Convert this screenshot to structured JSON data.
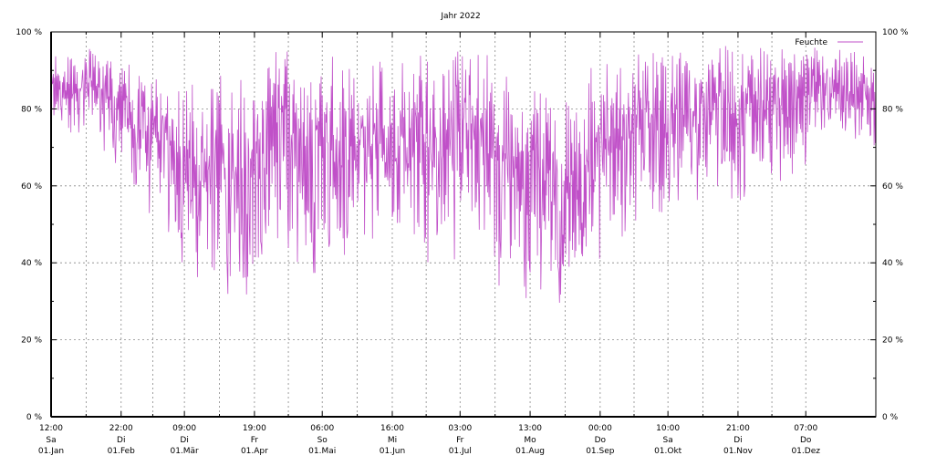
{
  "chart_data": {
    "type": "line",
    "title": "Jahr 2022",
    "xlabel": "",
    "ylabel": "",
    "ylim": [
      0,
      100
    ],
    "xlim_days": [
      0,
      365
    ],
    "grid": true,
    "legend_position": "top-right",
    "y_ticks": [
      {
        "value": 0,
        "label": "0 %"
      },
      {
        "value": 20,
        "label": "20 %"
      },
      {
        "value": 40,
        "label": "40 %"
      },
      {
        "value": 60,
        "label": "60 %"
      },
      {
        "value": 80,
        "label": "80 %"
      },
      {
        "value": 100,
        "label": "100 %"
      }
    ],
    "x_ticks": [
      {
        "day": 0,
        "time": "12:00",
        "weekday": "Sa",
        "date": "01.Jan"
      },
      {
        "day": 31,
        "time": "22:00",
        "weekday": "Di",
        "date": "01.Feb"
      },
      {
        "day": 59,
        "time": "09:00",
        "weekday": "Di",
        "date": "01.Mär"
      },
      {
        "day": 90,
        "time": "19:00",
        "weekday": "Fr",
        "date": "01.Apr"
      },
      {
        "day": 120,
        "time": "06:00",
        "weekday": "So",
        "date": "01.Mai"
      },
      {
        "day": 151,
        "time": "16:00",
        "weekday": "Mi",
        "date": "01.Jun"
      },
      {
        "day": 181,
        "time": "03:00",
        "weekday": "Fr",
        "date": "01.Jul"
      },
      {
        "day": 212,
        "time": "13:00",
        "weekday": "Mo",
        "date": "01.Aug"
      },
      {
        "day": 243,
        "time": "00:00",
        "weekday": "Do",
        "date": "01.Sep"
      },
      {
        "day": 273,
        "time": "10:00",
        "weekday": "Sa",
        "date": "01.Okt"
      },
      {
        "day": 304,
        "time": "21:00",
        "weekday": "Di",
        "date": "01.Nov"
      },
      {
        "day": 334,
        "time": "07:00",
        "weekday": "Do",
        "date": "01.Dez"
      }
    ],
    "series": [
      {
        "name": "Feuchte",
        "color": "#c050c8",
        "unit": "%",
        "weekly_range": [
          [
            72,
            95
          ],
          [
            70,
            95
          ],
          [
            75,
            96
          ],
          [
            68,
            95
          ],
          [
            65,
            92
          ],
          [
            55,
            90
          ],
          [
            50,
            88
          ],
          [
            48,
            86
          ],
          [
            40,
            88
          ],
          [
            35,
            80
          ],
          [
            28,
            95
          ],
          [
            30,
            85
          ],
          [
            28,
            90
          ],
          [
            35,
            95
          ],
          [
            45,
            95
          ],
          [
            40,
            92
          ],
          [
            35,
            90
          ],
          [
            38,
            95
          ],
          [
            40,
            92
          ],
          [
            38,
            90
          ],
          [
            40,
            95
          ],
          [
            42,
            88
          ],
          [
            45,
            92
          ],
          [
            40,
            95
          ],
          [
            38,
            90
          ],
          [
            35,
            95
          ],
          [
            45,
            95
          ],
          [
            35,
            95
          ],
          [
            30,
            90
          ],
          [
            25,
            85
          ],
          [
            30,
            88
          ],
          [
            32,
            85
          ],
          [
            28,
            82
          ],
          [
            30,
            80
          ],
          [
            35,
            92
          ],
          [
            40,
            95
          ],
          [
            45,
            92
          ],
          [
            50,
            95
          ],
          [
            45,
            95
          ],
          [
            55,
            96
          ],
          [
            55,
            96
          ],
          [
            58,
            95
          ],
          [
            60,
            97
          ],
          [
            55,
            95
          ],
          [
            60,
            96
          ],
          [
            62,
            95
          ],
          [
            60,
            96
          ],
          [
            65,
            95
          ],
          [
            70,
            96
          ],
          [
            75,
            96
          ],
          [
            72,
            95
          ],
          [
            70,
            94
          ],
          [
            65,
            92
          ]
        ]
      }
    ]
  }
}
